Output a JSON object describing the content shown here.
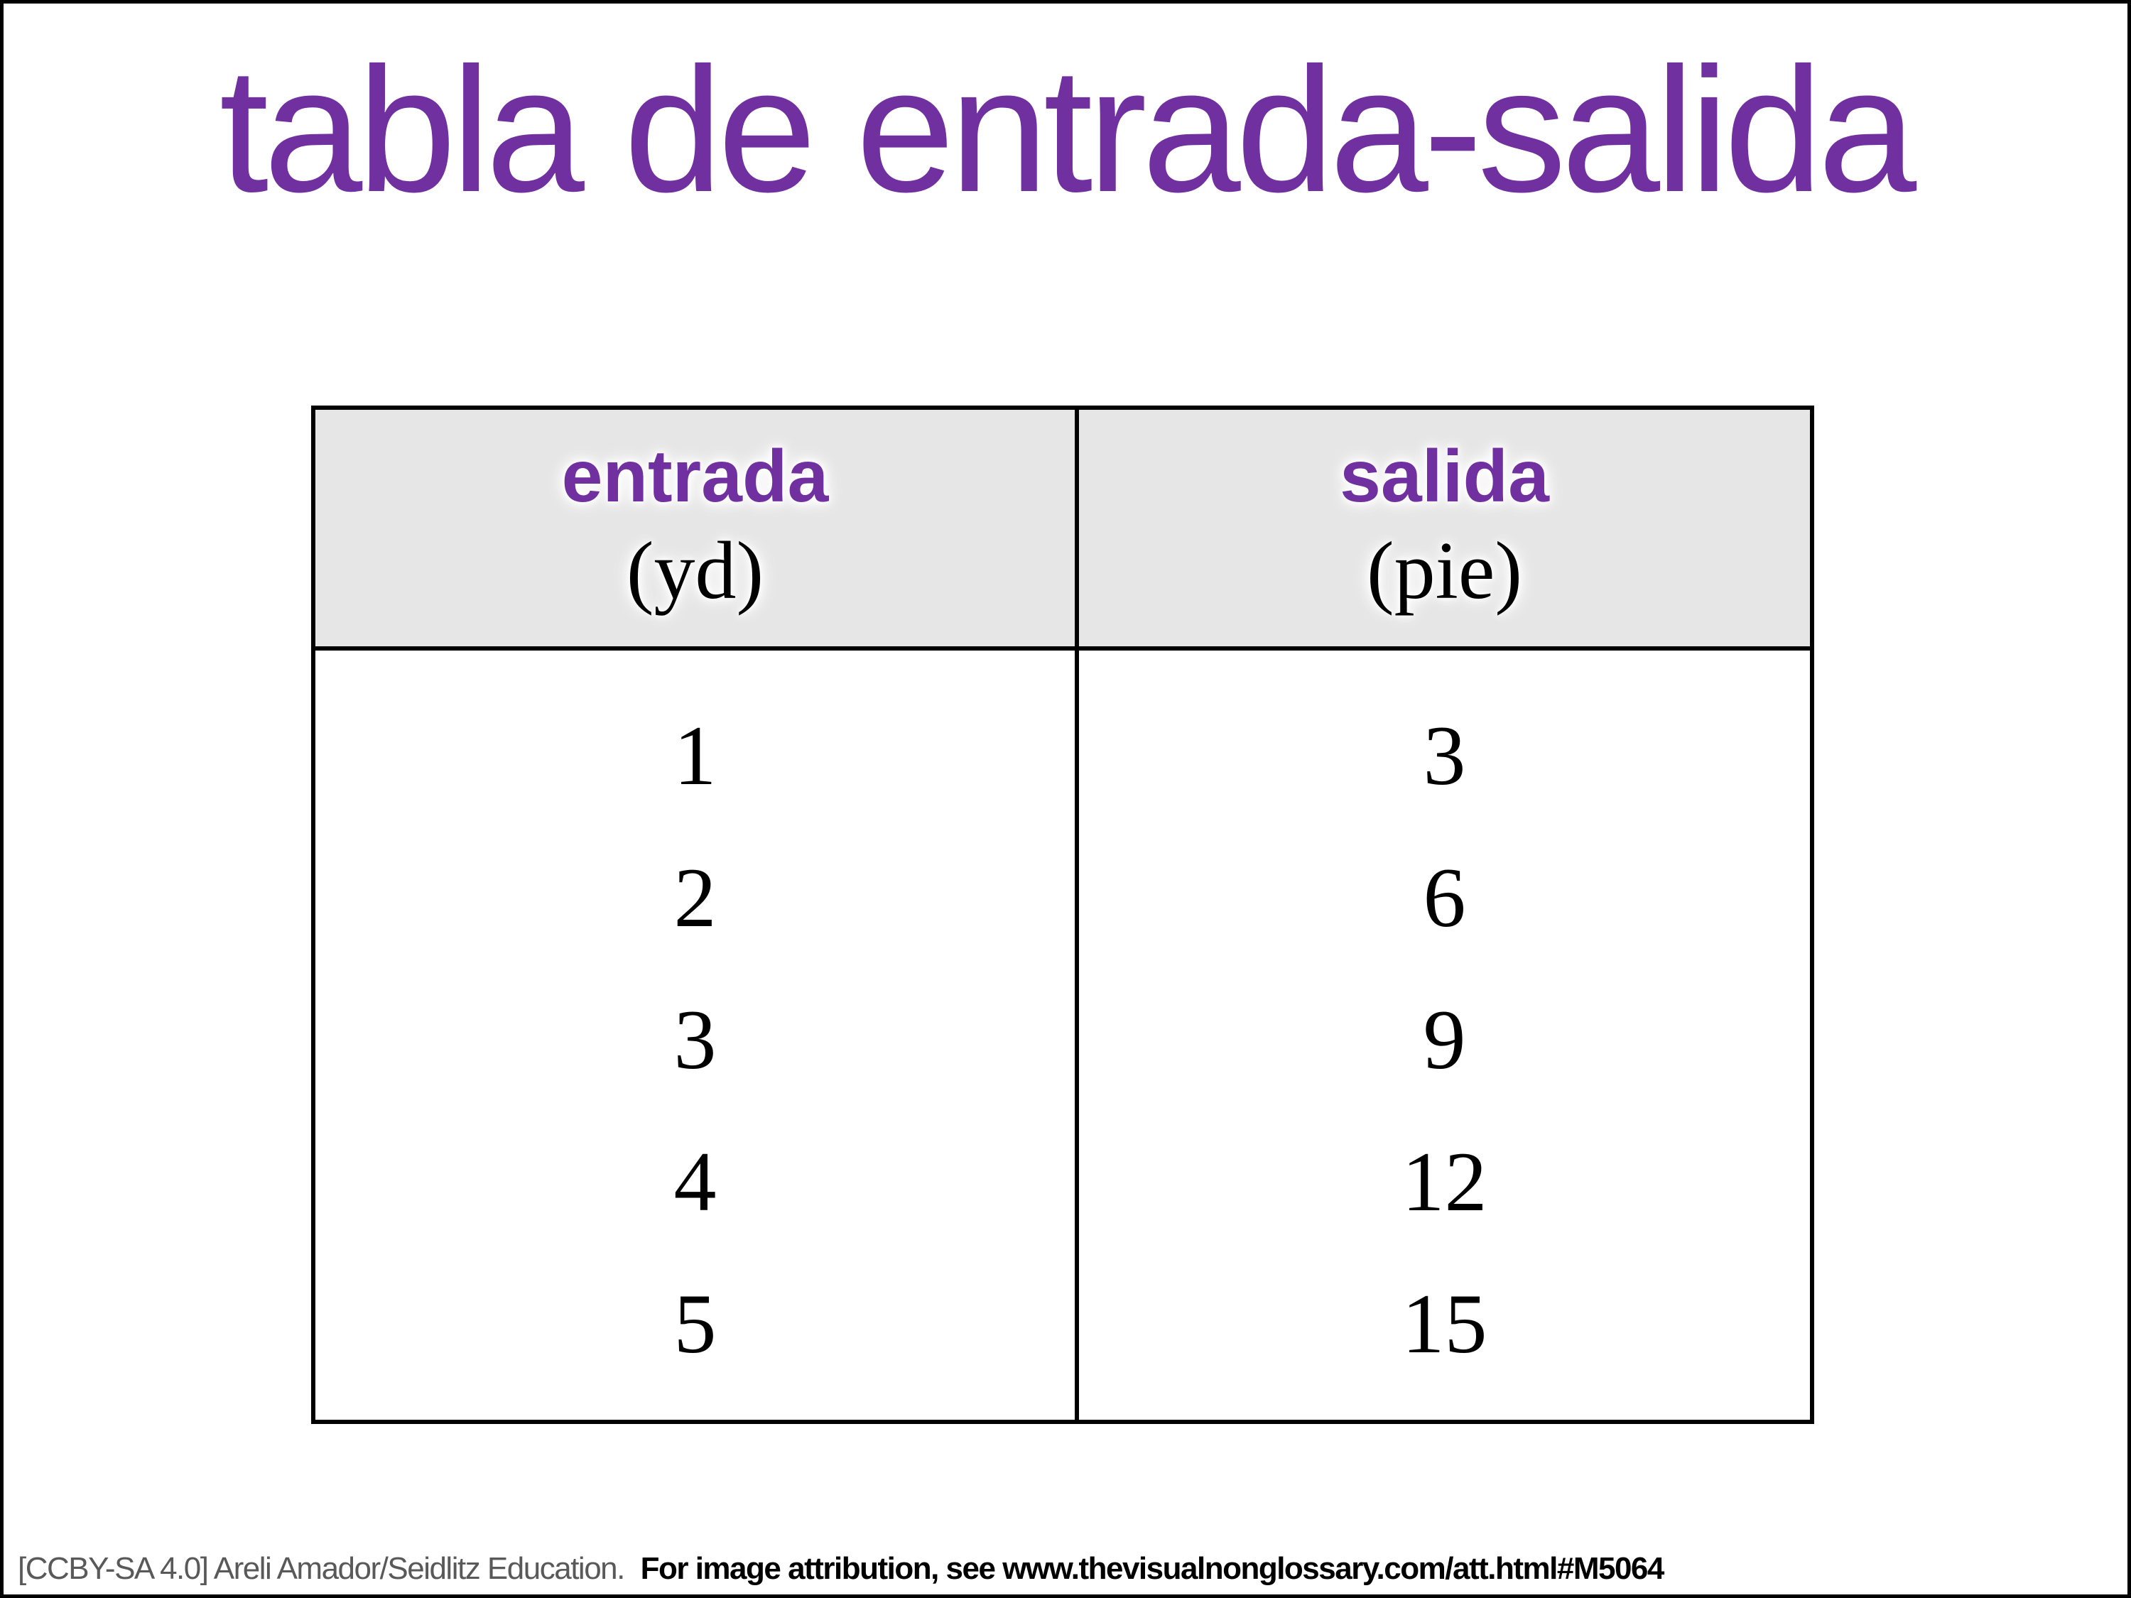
{
  "page": {
    "title": "tabla de entrada-salida"
  },
  "colors": {
    "title_purple": "#7030A0",
    "header_purple": "#7030A0",
    "header_bg": "#E7E6E6",
    "table_border": "#000000",
    "footer_gray": "#595959"
  },
  "table": {
    "headers": [
      {
        "label": "entrada",
        "unit": "(yd)"
      },
      {
        "label": "salida",
        "unit": "(pie)"
      }
    ],
    "rows": [
      {
        "entrada": "1",
        "salida": "3"
      },
      {
        "entrada": "2",
        "salida": "6"
      },
      {
        "entrada": "3",
        "salida": "9"
      },
      {
        "entrada": "4",
        "salida": "12"
      },
      {
        "entrada": "5",
        "salida": "15"
      }
    ]
  },
  "footer": {
    "license": "[CCBY-SA 4.0] Areli Amador/Seidlitz Education.",
    "attribution": "For image attribution, see www.thevisualnonglossary.com/att.html#M5064"
  },
  "chart_data": {
    "type": "table",
    "title": "tabla de entrada-salida",
    "columns": [
      "entrada (yd)",
      "salida (pie)"
    ],
    "rows": [
      [
        1,
        3
      ],
      [
        2,
        6
      ],
      [
        3,
        9
      ],
      [
        4,
        12
      ],
      [
        5,
        15
      ]
    ]
  }
}
